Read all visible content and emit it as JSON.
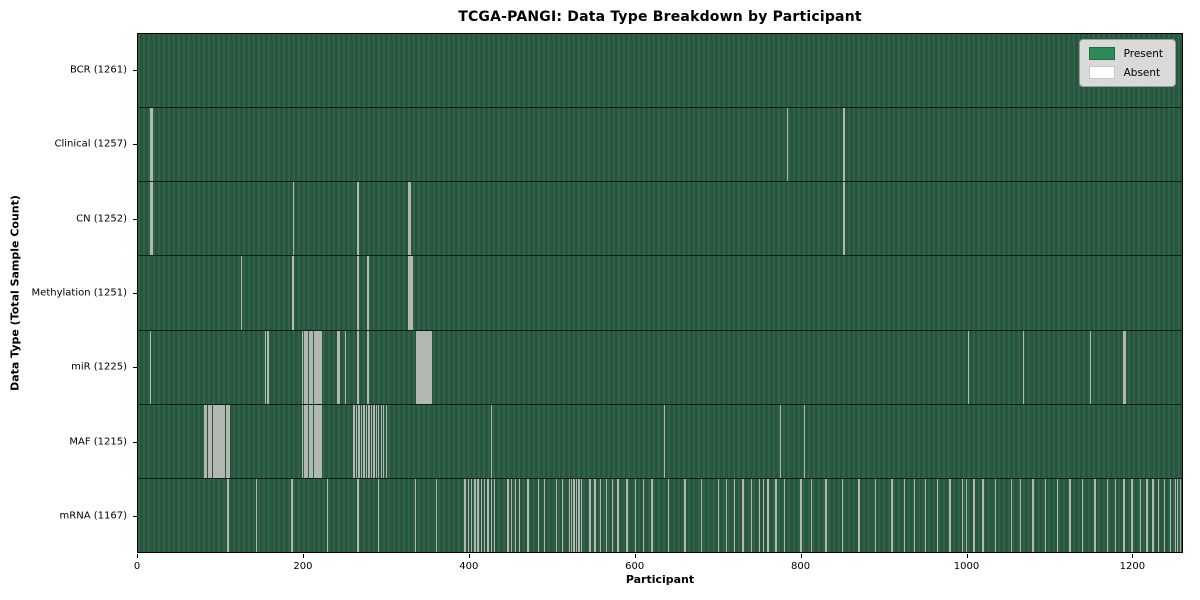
{
  "chart_data": {
    "type": "heatmap",
    "title": "TCGA-PANGI: Data Type Breakdown by Participant",
    "xlabel": "Participant",
    "ylabel": "Data Type (Total Sample Count)",
    "x_range": [
      0,
      1261
    ],
    "x_ticks": [
      0,
      200,
      400,
      600,
      800,
      1000,
      1200
    ],
    "grid": false,
    "legend_position": "upper right",
    "legend": [
      {
        "label": "Present",
        "color": "#2e8b57"
      },
      {
        "label": "Absent",
        "color": "#ffffff"
      }
    ],
    "total_participants": 1261,
    "colors": {
      "present": "#2e8b57",
      "absent": "#ffffff",
      "row_stripe_light": "#30634a",
      "row_stripe_dark": "#1e432f",
      "absent_stripe_rendered": "#b2b8b1"
    },
    "rows": [
      {
        "label": "BCR (1261)",
        "data_type": "BCR",
        "present_count": 1261,
        "absent_count": 0,
        "absent_participants": []
      },
      {
        "label": "Clinical (1257)",
        "data_type": "Clinical",
        "present_count": 1257,
        "absent_count": 4,
        "absent_participants": [
          15,
          16,
          784,
          852
        ]
      },
      {
        "label": "CN (1252)",
        "data_type": "CN",
        "present_count": 1252,
        "absent_count": 9,
        "absent_participants": [
          14,
          15,
          16,
          187,
          265,
          326,
          327,
          328,
          852
        ]
      },
      {
        "label": "Methylation (1251)",
        "data_type": "Methylation",
        "present_count": 1251,
        "absent_count": 10,
        "absent_participants": [
          124,
          186,
          187,
          265,
          277,
          326,
          327,
          328,
          329,
          330
        ]
      },
      {
        "label": "miR (1225)",
        "data_type": "miR",
        "present_count": 1225,
        "absent_count": 36,
        "absent_participants": [
          14,
          153,
          156,
          198,
          200,
          202,
          204,
          206,
          208,
          210,
          212,
          214,
          216,
          218,
          220,
          240,
          241,
          242,
          250,
          265,
          277,
          336,
          338,
          340,
          342,
          344,
          346,
          348,
          350,
          352,
          354,
          1002,
          1069,
          1150,
          1190,
          1192
        ]
      },
      {
        "label": "MAF (1215)",
        "data_type": "MAF",
        "present_count": 1215,
        "absent_count": 46,
        "absent_participants": [
          80,
          82,
          84,
          86,
          88,
          90,
          92,
          94,
          96,
          98,
          100,
          102,
          104,
          106,
          108,
          110,
          198,
          200,
          202,
          204,
          206,
          208,
          210,
          212,
          214,
          216,
          218,
          220,
          260,
          263,
          266,
          269,
          272,
          275,
          278,
          281,
          284,
          287,
          290,
          293,
          296,
          299,
          426,
          635,
          775,
          804
        ]
      },
      {
        "label": "mRNA (1167)",
        "data_type": "mRNA",
        "present_count": 1167,
        "absent_count": 94,
        "absent_participants": [
          108,
          142,
          185,
          228,
          265,
          290,
          334,
          360,
          394,
          398,
          402,
          406,
          410,
          414,
          418,
          422,
          426,
          430,
          446,
          450,
          455,
          460,
          470,
          483,
          490,
          505,
          512,
          520,
          523,
          526,
          529,
          532,
          535,
          545,
          551,
          558,
          565,
          572,
          579,
          590,
          600,
          610,
          620,
          640,
          660,
          680,
          700,
          710,
          720,
          730,
          740,
          750,
          755,
          760,
          770,
          780,
          800,
          813,
          830,
          850,
          870,
          890,
          910,
          925,
          937,
          950,
          965,
          980,
          995,
          1000,
          1009,
          1020,
          1035,
          1054,
          1065,
          1080,
          1095,
          1110,
          1125,
          1140,
          1155,
          1170,
          1180,
          1190,
          1200,
          1210,
          1218,
          1225,
          1232,
          1239,
          1246,
          1252,
          1255,
          1258
        ]
      }
    ]
  }
}
